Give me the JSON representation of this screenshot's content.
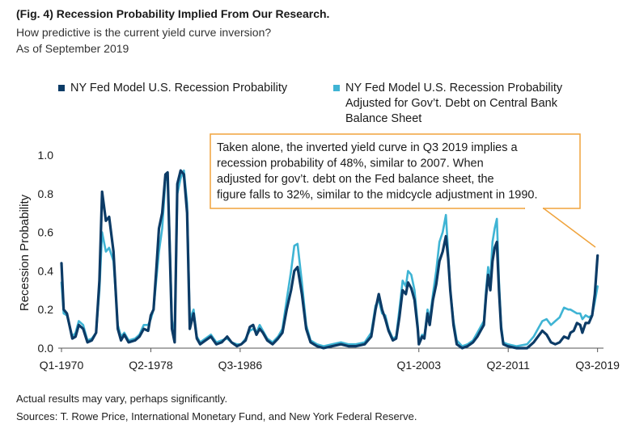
{
  "header": {
    "title": "(Fig. 4) Recession Probability Implied From Our Research.",
    "subtitle": "How predictive is the current yield curve inversion?",
    "as_of": "As of September 2019"
  },
  "colors": {
    "series_dark": "#0c3b66",
    "series_light": "#3fb4d4",
    "annotation_border": "#f0a33c",
    "axis": "#555555"
  },
  "annotation": {
    "lines": [
      "Taken alone, the inverted yield curve in Q3 2019 implies a",
      "recession probability of 48%, similar to 2007. When",
      "adjusted for gov’t. debt on the Fed balance sheet, the",
      "figure falls to 32%, similar to the midcycle adjustment in 1990."
    ]
  },
  "footer": {
    "note": "Actual results may vary, perhaps significantly.",
    "sources": "Sources: T. Rowe Price, International Monetary Fund, and New York Federal Reserve."
  },
  "chart_data": {
    "type": "line",
    "title": "",
    "ylabel": "Recession Probability",
    "xlabel": "",
    "ylim": [
      0,
      1.0
    ],
    "yticks": [
      "0.0",
      "0.2",
      "0.4",
      "0.6",
      "0.8",
      "1.0"
    ],
    "xlim": [
      1970.0,
      2019.75
    ],
    "xtick_labels": [
      {
        "label": "Q1-1970",
        "x": 1970.0
      },
      {
        "label": "Q2-1978",
        "x": 1978.25
      },
      {
        "label": "Q3-1986",
        "x": 1986.5
      },
      {
        "label": "Q1-2003",
        "x": 2003.0
      },
      {
        "label": "Q2-2011",
        "x": 2011.25
      },
      {
        "label": "Q3-2019",
        "x": 2019.5
      }
    ],
    "legend_position": "top",
    "series": [
      {
        "name": "NY Fed Model U.S. Recession Probability",
        "points": [
          [
            1970.0,
            0.44
          ],
          [
            1970.2,
            0.2
          ],
          [
            1970.5,
            0.18
          ],
          [
            1971.0,
            0.05
          ],
          [
            1971.3,
            0.06
          ],
          [
            1971.6,
            0.12
          ],
          [
            1972.0,
            0.1
          ],
          [
            1972.4,
            0.03
          ],
          [
            1972.8,
            0.04
          ],
          [
            1973.2,
            0.08
          ],
          [
            1973.5,
            0.35
          ],
          [
            1973.75,
            0.81
          ],
          [
            1974.1,
            0.66
          ],
          [
            1974.4,
            0.68
          ],
          [
            1974.8,
            0.5
          ],
          [
            1975.2,
            0.1
          ],
          [
            1975.5,
            0.04
          ],
          [
            1975.8,
            0.07
          ],
          [
            1976.2,
            0.03
          ],
          [
            1976.8,
            0.04
          ],
          [
            1977.2,
            0.06
          ],
          [
            1977.6,
            0.1
          ],
          [
            1978.0,
            0.09
          ],
          [
            1978.25,
            0.17
          ],
          [
            1978.5,
            0.2
          ],
          [
            1978.75,
            0.4
          ],
          [
            1979.0,
            0.62
          ],
          [
            1979.3,
            0.7
          ],
          [
            1979.6,
            0.9
          ],
          [
            1979.8,
            0.91
          ],
          [
            1980.0,
            0.5
          ],
          [
            1980.2,
            0.1
          ],
          [
            1980.45,
            0.03
          ],
          [
            1980.7,
            0.85
          ],
          [
            1981.0,
            0.92
          ],
          [
            1981.3,
            0.9
          ],
          [
            1981.6,
            0.7
          ],
          [
            1981.85,
            0.1
          ],
          [
            1982.2,
            0.18
          ],
          [
            1982.5,
            0.05
          ],
          [
            1982.8,
            0.02
          ],
          [
            1983.3,
            0.04
          ],
          [
            1983.8,
            0.06
          ],
          [
            1984.3,
            0.02
          ],
          [
            1984.8,
            0.03
          ],
          [
            1985.3,
            0.06
          ],
          [
            1985.7,
            0.03
          ],
          [
            1986.2,
            0.01
          ],
          [
            1986.6,
            0.02
          ],
          [
            1987.0,
            0.04
          ],
          [
            1987.4,
            0.11
          ],
          [
            1987.7,
            0.12
          ],
          [
            1988.0,
            0.07
          ],
          [
            1988.3,
            0.1
          ],
          [
            1988.6,
            0.08
          ],
          [
            1989.0,
            0.04
          ],
          [
            1989.5,
            0.02
          ],
          [
            1990.0,
            0.05
          ],
          [
            1990.4,
            0.08
          ],
          [
            1990.8,
            0.2
          ],
          [
            1991.2,
            0.3
          ],
          [
            1991.5,
            0.4
          ],
          [
            1991.8,
            0.42
          ],
          [
            1992.2,
            0.28
          ],
          [
            1992.6,
            0.1
          ],
          [
            1993.0,
            0.03
          ],
          [
            1993.6,
            0.01
          ],
          [
            1994.2,
            0.0
          ],
          [
            1995.0,
            0.01
          ],
          [
            1995.8,
            0.02
          ],
          [
            1996.5,
            0.01
          ],
          [
            1997.2,
            0.01
          ],
          [
            1998.0,
            0.02
          ],
          [
            1998.6,
            0.06
          ],
          [
            1999.0,
            0.2
          ],
          [
            1999.3,
            0.28
          ],
          [
            1999.6,
            0.2
          ],
          [
            1999.9,
            0.15
          ],
          [
            2000.2,
            0.09
          ],
          [
            2000.6,
            0.04
          ],
          [
            2000.9,
            0.05
          ],
          [
            2001.2,
            0.16
          ],
          [
            2001.5,
            0.3
          ],
          [
            2001.8,
            0.28
          ],
          [
            2002.0,
            0.34
          ],
          [
            2002.3,
            0.31
          ],
          [
            2002.6,
            0.25
          ],
          [
            2002.9,
            0.1
          ],
          [
            2003.0,
            0.02
          ],
          [
            2003.3,
            0.06
          ],
          [
            2003.5,
            0.05
          ],
          [
            2003.8,
            0.18
          ],
          [
            2004.0,
            0.12
          ],
          [
            2004.3,
            0.25
          ],
          [
            2004.6,
            0.33
          ],
          [
            2004.9,
            0.45
          ],
          [
            2005.2,
            0.5
          ],
          [
            2005.5,
            0.58
          ],
          [
            2005.7,
            0.47
          ],
          [
            2005.9,
            0.3
          ],
          [
            2006.2,
            0.12
          ],
          [
            2006.5,
            0.02
          ],
          [
            2007.0,
            0.0
          ],
          [
            2007.5,
            0.01
          ],
          [
            2008.0,
            0.03
          ],
          [
            2008.4,
            0.06
          ],
          [
            2008.8,
            0.1
          ],
          [
            2009.0,
            0.12
          ],
          [
            2009.2,
            0.27
          ],
          [
            2009.4,
            0.38
          ],
          [
            2009.6,
            0.3
          ],
          [
            2009.8,
            0.45
          ],
          [
            2010.0,
            0.52
          ],
          [
            2010.2,
            0.55
          ],
          [
            2010.4,
            0.3
          ],
          [
            2010.6,
            0.1
          ],
          [
            2010.8,
            0.02
          ],
          [
            2011.2,
            0.01
          ],
          [
            2012.0,
            0.0
          ],
          [
            2013.0,
            0.0
          ],
          [
            2013.6,
            0.03
          ],
          [
            2014.0,
            0.06
          ],
          [
            2014.4,
            0.09
          ],
          [
            2014.8,
            0.07
          ],
          [
            2015.2,
            0.03
          ],
          [
            2015.6,
            0.02
          ],
          [
            2016.0,
            0.03
          ],
          [
            2016.4,
            0.06
          ],
          [
            2016.8,
            0.05
          ],
          [
            2017.0,
            0.08
          ],
          [
            2017.3,
            0.09
          ],
          [
            2017.6,
            0.13
          ],
          [
            2017.9,
            0.12
          ],
          [
            2018.1,
            0.08
          ],
          [
            2018.4,
            0.13
          ],
          [
            2018.7,
            0.13
          ],
          [
            2019.0,
            0.17
          ],
          [
            2019.25,
            0.28
          ],
          [
            2019.5,
            0.48
          ]
        ]
      },
      {
        "name": "NY Fed Model U.S. Recession Probability Adjusted for Gov’t. Debt on Central Bank Balance Sheet",
        "points": [
          [
            1970.0,
            0.34
          ],
          [
            1970.2,
            0.18
          ],
          [
            1970.5,
            0.17
          ],
          [
            1971.0,
            0.06
          ],
          [
            1971.3,
            0.08
          ],
          [
            1971.6,
            0.14
          ],
          [
            1972.0,
            0.12
          ],
          [
            1972.4,
            0.04
          ],
          [
            1972.8,
            0.05
          ],
          [
            1973.2,
            0.08
          ],
          [
            1973.5,
            0.3
          ],
          [
            1973.75,
            0.6
          ],
          [
            1974.1,
            0.5
          ],
          [
            1974.4,
            0.52
          ],
          [
            1974.8,
            0.45
          ],
          [
            1975.2,
            0.12
          ],
          [
            1975.5,
            0.06
          ],
          [
            1975.8,
            0.08
          ],
          [
            1976.2,
            0.04
          ],
          [
            1976.8,
            0.05
          ],
          [
            1977.2,
            0.07
          ],
          [
            1977.6,
            0.12
          ],
          [
            1978.0,
            0.12
          ],
          [
            1978.25,
            0.15
          ],
          [
            1978.5,
            0.2
          ],
          [
            1978.75,
            0.35
          ],
          [
            1979.0,
            0.5
          ],
          [
            1979.3,
            0.62
          ],
          [
            1979.6,
            0.87
          ],
          [
            1979.8,
            0.88
          ],
          [
            1980.0,
            0.55
          ],
          [
            1980.2,
            0.15
          ],
          [
            1980.45,
            0.05
          ],
          [
            1980.7,
            0.8
          ],
          [
            1981.0,
            0.88
          ],
          [
            1981.3,
            0.92
          ],
          [
            1981.6,
            0.75
          ],
          [
            1981.85,
            0.15
          ],
          [
            1982.2,
            0.2
          ],
          [
            1982.5,
            0.06
          ],
          [
            1982.8,
            0.03
          ],
          [
            1983.3,
            0.05
          ],
          [
            1983.8,
            0.07
          ],
          [
            1984.3,
            0.03
          ],
          [
            1984.8,
            0.04
          ],
          [
            1985.3,
            0.05
          ],
          [
            1985.7,
            0.03
          ],
          [
            1986.2,
            0.02
          ],
          [
            1986.6,
            0.02
          ],
          [
            1987.0,
            0.05
          ],
          [
            1987.4,
            0.09
          ],
          [
            1987.7,
            0.1
          ],
          [
            1988.0,
            0.08
          ],
          [
            1988.3,
            0.12
          ],
          [
            1988.6,
            0.09
          ],
          [
            1989.0,
            0.05
          ],
          [
            1989.5,
            0.03
          ],
          [
            1990.0,
            0.06
          ],
          [
            1990.4,
            0.1
          ],
          [
            1990.8,
            0.25
          ],
          [
            1991.2,
            0.4
          ],
          [
            1991.5,
            0.53
          ],
          [
            1991.8,
            0.54
          ],
          [
            1992.2,
            0.34
          ],
          [
            1992.6,
            0.12
          ],
          [
            1993.0,
            0.04
          ],
          [
            1993.6,
            0.02
          ],
          [
            1994.2,
            0.01
          ],
          [
            1995.0,
            0.02
          ],
          [
            1995.8,
            0.03
          ],
          [
            1996.5,
            0.02
          ],
          [
            1997.2,
            0.02
          ],
          [
            1998.0,
            0.03
          ],
          [
            1998.6,
            0.08
          ],
          [
            1999.0,
            0.22
          ],
          [
            1999.3,
            0.25
          ],
          [
            1999.6,
            0.18
          ],
          [
            1999.9,
            0.17
          ],
          [
            2000.2,
            0.1
          ],
          [
            2000.6,
            0.05
          ],
          [
            2000.9,
            0.06
          ],
          [
            2001.2,
            0.2
          ],
          [
            2001.5,
            0.35
          ],
          [
            2001.8,
            0.32
          ],
          [
            2002.0,
            0.4
          ],
          [
            2002.3,
            0.38
          ],
          [
            2002.6,
            0.3
          ],
          [
            2002.9,
            0.12
          ],
          [
            2003.0,
            0.03
          ],
          [
            2003.3,
            0.07
          ],
          [
            2003.5,
            0.06
          ],
          [
            2003.8,
            0.2
          ],
          [
            2004.0,
            0.15
          ],
          [
            2004.3,
            0.28
          ],
          [
            2004.6,
            0.4
          ],
          [
            2004.9,
            0.55
          ],
          [
            2005.2,
            0.6
          ],
          [
            2005.5,
            0.69
          ],
          [
            2005.7,
            0.5
          ],
          [
            2005.9,
            0.3
          ],
          [
            2006.2,
            0.14
          ],
          [
            2006.5,
            0.04
          ],
          [
            2007.0,
            0.01
          ],
          [
            2007.5,
            0.02
          ],
          [
            2008.0,
            0.04
          ],
          [
            2008.4,
            0.08
          ],
          [
            2008.8,
            0.12
          ],
          [
            2009.0,
            0.14
          ],
          [
            2009.2,
            0.3
          ],
          [
            2009.4,
            0.42
          ],
          [
            2009.6,
            0.35
          ],
          [
            2009.8,
            0.55
          ],
          [
            2010.0,
            0.62
          ],
          [
            2010.2,
            0.67
          ],
          [
            2010.4,
            0.35
          ],
          [
            2010.6,
            0.12
          ],
          [
            2010.8,
            0.03
          ],
          [
            2011.2,
            0.02
          ],
          [
            2012.0,
            0.01
          ],
          [
            2013.0,
            0.02
          ],
          [
            2013.6,
            0.06
          ],
          [
            2014.0,
            0.1
          ],
          [
            2014.4,
            0.14
          ],
          [
            2014.8,
            0.15
          ],
          [
            2015.2,
            0.12
          ],
          [
            2015.6,
            0.14
          ],
          [
            2016.0,
            0.16
          ],
          [
            2016.4,
            0.21
          ],
          [
            2016.8,
            0.2
          ],
          [
            2017.0,
            0.2
          ],
          [
            2017.3,
            0.19
          ],
          [
            2017.6,
            0.18
          ],
          [
            2017.9,
            0.18
          ],
          [
            2018.1,
            0.15
          ],
          [
            2018.4,
            0.17
          ],
          [
            2018.7,
            0.16
          ],
          [
            2019.0,
            0.17
          ],
          [
            2019.25,
            0.24
          ],
          [
            2019.5,
            0.32
          ]
        ]
      }
    ]
  }
}
